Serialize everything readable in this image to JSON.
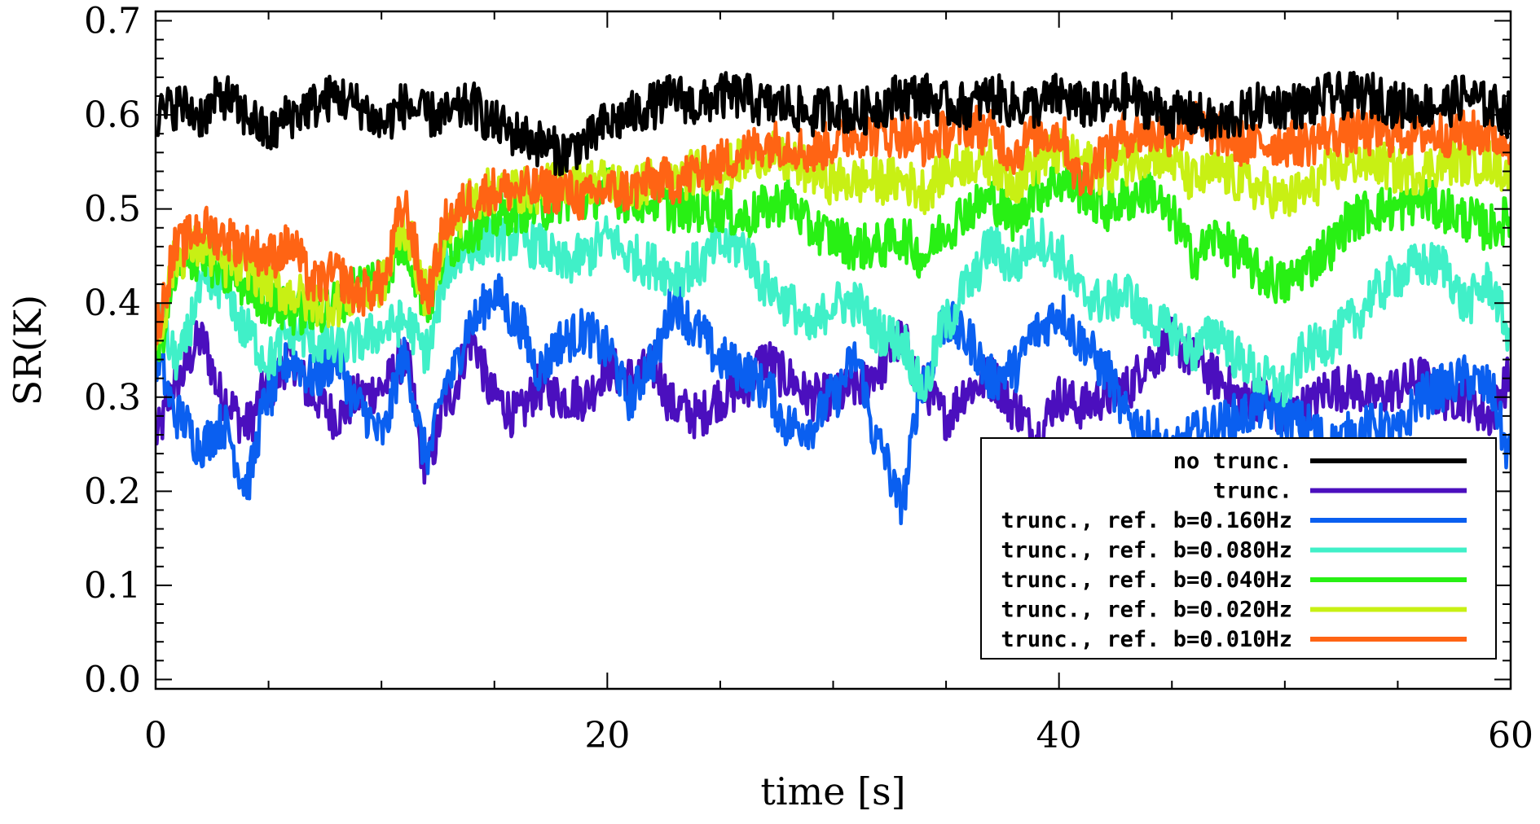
{
  "chart_data": {
    "type": "line",
    "title": "",
    "xlabel": "time [s]",
    "ylabel": "SR(K)",
    "xlim": [
      0,
      60
    ],
    "ylim": [
      -0.01,
      0.71
    ],
    "x_ticks": [
      0,
      20,
      40,
      60
    ],
    "x_tick_labels": [
      "0",
      "20",
      "40",
      "60"
    ],
    "y_ticks": [
      0.0,
      0.1,
      0.2,
      0.3,
      0.4,
      0.5,
      0.6,
      0.7
    ],
    "y_tick_labels": [
      "0.0",
      "0.1",
      "0.2",
      "0.3",
      "0.4",
      "0.5",
      "0.6",
      "0.7"
    ],
    "legend_position": "lower-right",
    "grid": false,
    "x": [
      0,
      1,
      2,
      3,
      4,
      5,
      6,
      7,
      8,
      9,
      10,
      11,
      12,
      13,
      14,
      15,
      16,
      17,
      18,
      19,
      20,
      21,
      22,
      23,
      24,
      25,
      26,
      27,
      28,
      29,
      30,
      31,
      32,
      33,
      34,
      35,
      36,
      37,
      38,
      39,
      40,
      41,
      42,
      43,
      44,
      45,
      46,
      47,
      48,
      49,
      50,
      51,
      52,
      53,
      54,
      55,
      56,
      57,
      58,
      59,
      60
    ],
    "series": [
      {
        "name": "no trunc.",
        "color": "#000000",
        "values": [
          0.6,
          0.61,
          0.6,
          0.62,
          0.6,
          0.58,
          0.6,
          0.61,
          0.62,
          0.61,
          0.59,
          0.61,
          0.6,
          0.6,
          0.61,
          0.59,
          0.58,
          0.57,
          0.56,
          0.57,
          0.59,
          0.6,
          0.61,
          0.62,
          0.61,
          0.62,
          0.62,
          0.61,
          0.61,
          0.6,
          0.61,
          0.6,
          0.61,
          0.62,
          0.62,
          0.61,
          0.61,
          0.62,
          0.61,
          0.61,
          0.62,
          0.61,
          0.61,
          0.62,
          0.61,
          0.6,
          0.6,
          0.59,
          0.6,
          0.61,
          0.61,
          0.61,
          0.62,
          0.62,
          0.62,
          0.61,
          0.61,
          0.61,
          0.62,
          0.61,
          0.6
        ]
      },
      {
        "name": "trunc.",
        "color": "#4b0fbe",
        "values": [
          0.26,
          0.32,
          0.36,
          0.3,
          0.27,
          0.31,
          0.34,
          0.3,
          0.28,
          0.3,
          0.31,
          0.34,
          0.23,
          0.3,
          0.36,
          0.3,
          0.28,
          0.31,
          0.3,
          0.3,
          0.33,
          0.32,
          0.33,
          0.29,
          0.28,
          0.3,
          0.31,
          0.34,
          0.32,
          0.3,
          0.3,
          0.31,
          0.33,
          0.36,
          0.31,
          0.28,
          0.31,
          0.32,
          0.29,
          0.26,
          0.3,
          0.29,
          0.3,
          0.31,
          0.34,
          0.36,
          0.34,
          0.32,
          0.3,
          0.3,
          0.28,
          0.29,
          0.31,
          0.31,
          0.3,
          0.31,
          0.32,
          0.3,
          0.3,
          0.28,
          0.32
        ]
      },
      {
        "name": "trunc., ref. b=0.160Hz",
        "color": "#0a5ff0",
        "values": [
          0.34,
          0.28,
          0.25,
          0.27,
          0.21,
          0.3,
          0.34,
          0.32,
          0.34,
          0.29,
          0.26,
          0.34,
          0.24,
          0.32,
          0.38,
          0.41,
          0.38,
          0.33,
          0.36,
          0.37,
          0.35,
          0.3,
          0.34,
          0.4,
          0.37,
          0.34,
          0.33,
          0.31,
          0.27,
          0.27,
          0.3,
          0.34,
          0.25,
          0.19,
          0.32,
          0.38,
          0.36,
          0.32,
          0.33,
          0.37,
          0.39,
          0.36,
          0.33,
          0.28,
          0.26,
          0.24,
          0.26,
          0.27,
          0.28,
          0.29,
          0.28,
          0.27,
          0.25,
          0.26,
          0.27,
          0.26,
          0.3,
          0.31,
          0.32,
          0.31,
          0.24
        ]
      },
      {
        "name": "trunc., ref. b=0.080Hz",
        "color": "#40f0c8",
        "values": [
          0.38,
          0.34,
          0.41,
          0.42,
          0.37,
          0.34,
          0.37,
          0.36,
          0.35,
          0.36,
          0.37,
          0.38,
          0.35,
          0.44,
          0.46,
          0.47,
          0.47,
          0.46,
          0.44,
          0.45,
          0.47,
          0.45,
          0.44,
          0.43,
          0.44,
          0.46,
          0.46,
          0.42,
          0.4,
          0.37,
          0.4,
          0.4,
          0.37,
          0.36,
          0.31,
          0.38,
          0.42,
          0.46,
          0.44,
          0.47,
          0.45,
          0.41,
          0.4,
          0.41,
          0.38,
          0.37,
          0.35,
          0.37,
          0.34,
          0.32,
          0.31,
          0.35,
          0.36,
          0.38,
          0.41,
          0.43,
          0.44,
          0.44,
          0.4,
          0.42,
          0.37
        ]
      },
      {
        "name": "trunc., ref. b=0.040Hz",
        "color": "#28f014",
        "values": [
          0.35,
          0.43,
          0.45,
          0.43,
          0.42,
          0.4,
          0.39,
          0.39,
          0.4,
          0.42,
          0.43,
          0.46,
          0.4,
          0.46,
          0.48,
          0.49,
          0.5,
          0.5,
          0.51,
          0.51,
          0.52,
          0.51,
          0.51,
          0.5,
          0.5,
          0.5,
          0.49,
          0.5,
          0.51,
          0.48,
          0.47,
          0.46,
          0.46,
          0.47,
          0.45,
          0.48,
          0.5,
          0.51,
          0.49,
          0.52,
          0.53,
          0.52,
          0.5,
          0.51,
          0.52,
          0.49,
          0.45,
          0.47,
          0.45,
          0.43,
          0.42,
          0.44,
          0.46,
          0.49,
          0.5,
          0.5,
          0.51,
          0.5,
          0.49,
          0.48,
          0.49
        ]
      },
      {
        "name": "trunc., ref. b=0.020Hz",
        "color": "#c8f014",
        "values": [
          0.36,
          0.45,
          0.46,
          0.44,
          0.44,
          0.42,
          0.41,
          0.4,
          0.4,
          0.41,
          0.42,
          0.48,
          0.41,
          0.48,
          0.51,
          0.52,
          0.52,
          0.52,
          0.53,
          0.53,
          0.53,
          0.52,
          0.53,
          0.53,
          0.54,
          0.54,
          0.55,
          0.56,
          0.55,
          0.54,
          0.53,
          0.53,
          0.53,
          0.53,
          0.52,
          0.54,
          0.55,
          0.55,
          0.53,
          0.55,
          0.56,
          0.55,
          0.54,
          0.55,
          0.56,
          0.55,
          0.53,
          0.54,
          0.53,
          0.52,
          0.51,
          0.52,
          0.54,
          0.55,
          0.55,
          0.54,
          0.54,
          0.55,
          0.55,
          0.55,
          0.54
        ]
      },
      {
        "name": "trunc., ref. b=0.010Hz",
        "color": "#ff6414",
        "values": [
          0.38,
          0.46,
          0.48,
          0.47,
          0.46,
          0.45,
          0.46,
          0.42,
          0.43,
          0.41,
          0.42,
          0.5,
          0.41,
          0.49,
          0.51,
          0.52,
          0.52,
          0.52,
          0.52,
          0.51,
          0.52,
          0.52,
          0.53,
          0.53,
          0.54,
          0.55,
          0.56,
          0.57,
          0.57,
          0.56,
          0.57,
          0.58,
          0.58,
          0.58,
          0.57,
          0.58,
          0.59,
          0.58,
          0.56,
          0.58,
          0.58,
          0.53,
          0.56,
          0.58,
          0.58,
          0.58,
          0.59,
          0.58,
          0.57,
          0.57,
          0.57,
          0.57,
          0.58,
          0.58,
          0.58,
          0.58,
          0.58,
          0.58,
          0.58,
          0.58,
          0.57
        ]
      }
    ]
  }
}
